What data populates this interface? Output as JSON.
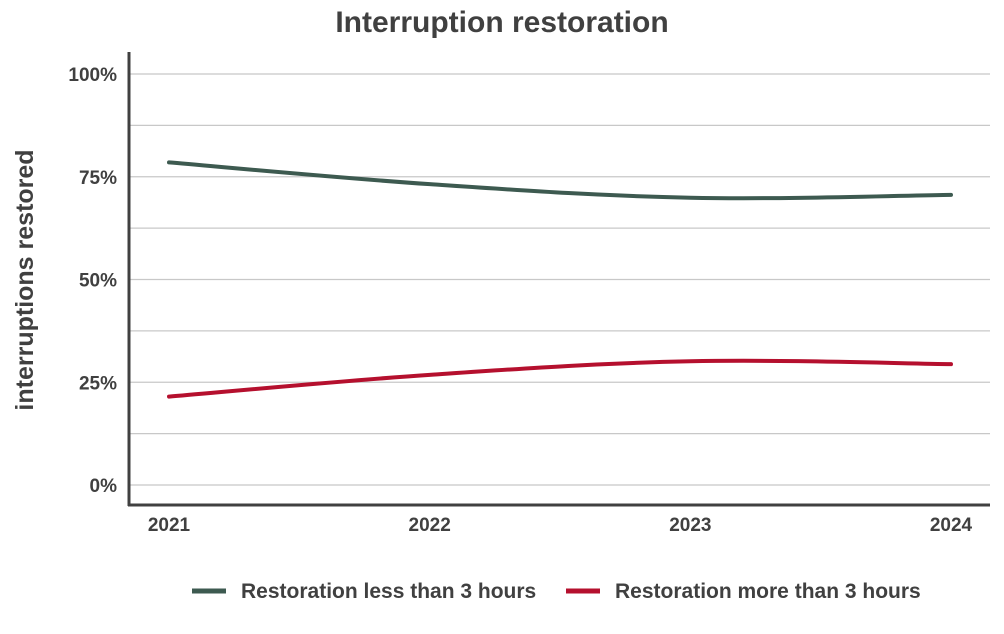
{
  "chart_data": {
    "type": "line",
    "title": "Interruption restoration",
    "xlabel": "",
    "ylabel": "interruptions restored",
    "x": [
      "2021",
      "2022",
      "2023",
      "2024"
    ],
    "ylim": [
      0,
      100
    ],
    "yticks": [
      0,
      25,
      50,
      75,
      100
    ],
    "ytick_labels": [
      "0%",
      "25%",
      "50%",
      "75%",
      "100%"
    ],
    "grid": true,
    "legend_position": "bottom",
    "series": [
      {
        "name": "Restoration less than 3 hours",
        "values": [
          78.5,
          73.2,
          69.9,
          70.6
        ],
        "color": "#3d5a50"
      },
      {
        "name": "Restoration more than 3 hours",
        "values": [
          21.5,
          26.8,
          30.1,
          29.4
        ],
        "color": "#b5102e"
      }
    ]
  }
}
